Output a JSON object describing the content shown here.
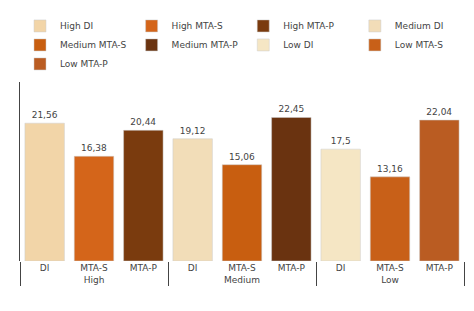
{
  "chart_data": {
    "type": "bar",
    "categories": [
      [
        "High",
        "DI"
      ],
      [
        "High",
        "MTA-S"
      ],
      [
        "High",
        "MTA-P"
      ],
      [
        "Medium",
        "DI"
      ],
      [
        "Medium",
        "MTA-S"
      ],
      [
        "Medium",
        "MTA-P"
      ],
      [
        "Low",
        "DI"
      ],
      [
        "Low",
        "MTA-S"
      ],
      [
        "Low",
        "MTA-P"
      ]
    ],
    "series": [
      {
        "name": "High DI",
        "color": "#f2d5a8",
        "values": [
          21.56,
          null,
          null,
          null,
          null,
          null,
          null,
          null,
          null
        ],
        "value_labels": [
          "21,56",
          null,
          null,
          null,
          null,
          null,
          null,
          null,
          null
        ]
      },
      {
        "name": "High MTA-S",
        "color": "#d4651a",
        "values": [
          null,
          16.38,
          null,
          null,
          null,
          null,
          null,
          null,
          null
        ],
        "value_labels": [
          null,
          "16,38",
          null,
          null,
          null,
          null,
          null,
          null,
          null
        ]
      },
      {
        "name": "High MTA-P",
        "color": "#7a3b0e",
        "values": [
          null,
          null,
          20.44,
          null,
          null,
          null,
          null,
          null,
          null
        ],
        "value_labels": [
          null,
          null,
          "20,44",
          null,
          null,
          null,
          null,
          null,
          null
        ]
      },
      {
        "name": "Medium DI",
        "color": "#f2ddb8",
        "values": [
          null,
          null,
          null,
          19.12,
          null,
          null,
          null,
          null,
          null
        ],
        "value_labels": [
          null,
          null,
          null,
          "19,12",
          null,
          null,
          null,
          null,
          null
        ]
      },
      {
        "name": "Medium MTA-S",
        "color": "#c85e10",
        "values": [
          null,
          null,
          null,
          null,
          15.06,
          null,
          null,
          null,
          null
        ],
        "value_labels": [
          null,
          null,
          null,
          null,
          "15,06",
          null,
          null,
          null,
          null
        ]
      },
      {
        "name": "Medium MTA-P",
        "color": "#6a3310",
        "values": [
          null,
          null,
          null,
          null,
          null,
          22.45,
          null,
          null,
          null
        ],
        "value_labels": [
          null,
          null,
          null,
          null,
          null,
          "22,45",
          null,
          null,
          null
        ]
      },
      {
        "name": "Low DI",
        "color": "#f5e6c4",
        "values": [
          null,
          null,
          null,
          null,
          null,
          null,
          17.5,
          null,
          null
        ],
        "value_labels": [
          null,
          null,
          null,
          null,
          null,
          null,
          "17,5",
          null,
          null
        ]
      },
      {
        "name": "Low MTA-S",
        "color": "#c86018",
        "values": [
          null,
          null,
          null,
          null,
          null,
          null,
          null,
          13.16,
          null
        ],
        "value_labels": [
          null,
          null,
          null,
          null,
          null,
          null,
          null,
          "13,16",
          null
        ]
      },
      {
        "name": "Low MTA-P",
        "color": "#ba5c22",
        "values": [
          null,
          null,
          null,
          null,
          null,
          null,
          null,
          null,
          22.04
        ],
        "value_labels": [
          null,
          null,
          null,
          null,
          null,
          null,
          null,
          null,
          "22,04"
        ]
      }
    ],
    "ylim": [
      0,
      28
    ],
    "grid": false,
    "legend": "top",
    "data_labels": true,
    "tick_labels": "x"
  }
}
